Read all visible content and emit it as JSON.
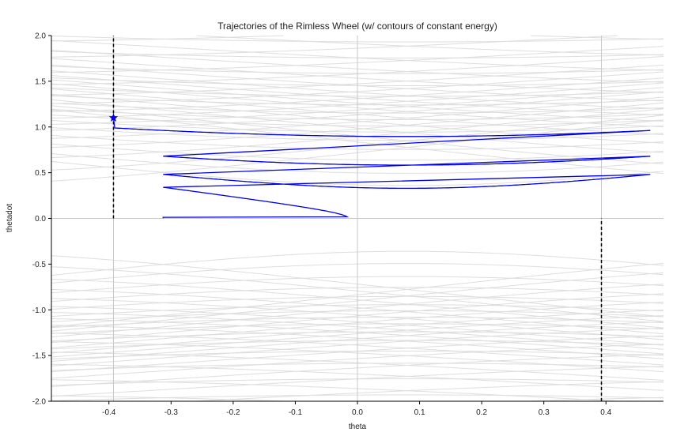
{
  "chart_data": {
    "type": "line",
    "title": "Trajectories of the Rimless Wheel (w/ contours of constant energy)",
    "xlabel": "theta",
    "ylabel": "thetadot",
    "xlim": [
      -0.4926,
      0.4926
    ],
    "ylim": [
      -2.0,
      2.0
    ],
    "xticks": [
      "-0.4",
      "-0.3",
      "-0.2",
      "-0.1",
      "0.0",
      "0.1",
      "0.2",
      "0.3",
      "0.4"
    ],
    "yticks": [
      "2.0",
      "1.5",
      "1.0",
      "0.5",
      "0.0",
      "-0.5",
      "-1.0",
      "-1.5",
      "-2.0"
    ],
    "grid": false,
    "colors": {
      "trajectory": "#0000ee",
      "contour": "#dddddd",
      "reference": "#c8c8c8",
      "boundary": "#000000"
    },
    "reference_lines": {
      "vertical_x": [
        -0.3927,
        0.0,
        0.3927
      ],
      "horizontal_y": [
        0.0
      ]
    },
    "boundaries": [
      {
        "x": -0.3927,
        "y_range": [
          0.0,
          2.0
        ]
      },
      {
        "x": 0.3927,
        "y_range": [
          -2.0,
          0.0
        ]
      }
    ],
    "start_point": {
      "x": -0.3927,
      "y": 1.1,
      "marker": "star"
    },
    "energy_contours": {
      "gravity_ratio": 1.0,
      "slope": 0.08,
      "levels": [
        0.63,
        0.72,
        0.82,
        0.95,
        1.1,
        1.3,
        1.55,
        1.9,
        2.3,
        2.75,
        0.55,
        0.45,
        0.35,
        0.25,
        0.15,
        0.08
      ],
      "centers": [
        0.0,
        -0.7854,
        0.7854
      ]
    },
    "series": [
      {
        "mode": "orbit",
        "start": {
          "x": -0.3927,
          "y": 1.1
        },
        "switch_theta": 0.4727,
        "reset_theta": -0.3127,
        "impact_factor": 0.7071,
        "gravity_ratio": 1.0,
        "slope": 0.08,
        "steps": 9
      }
    ]
  }
}
